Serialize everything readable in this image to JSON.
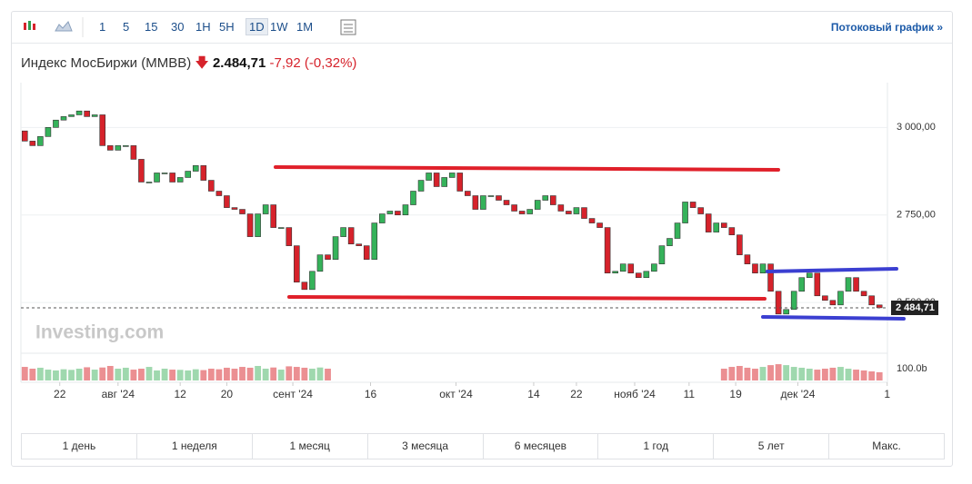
{
  "toolbar": {
    "intervals": [
      "1",
      "5",
      "15",
      "30",
      "1H",
      "5H",
      "1D",
      "1W",
      "1M"
    ],
    "stream_link": "Потоковый график »"
  },
  "header": {
    "name": "Индекс МосБиржи (MMBB)",
    "price": "2.484,71",
    "change": "-7,92",
    "change_pct": "(-0,32%)"
  },
  "chart_data": {
    "type": "candlestick",
    "watermark": "Investing.com",
    "xlim": [
      0,
      112
    ],
    "xticks": [
      {
        "value": 5,
        "label": "22"
      },
      {
        "value": 12.5,
        "label": "авг '24"
      },
      {
        "value": 20.5,
        "label": "12"
      },
      {
        "value": 26.5,
        "label": "20"
      },
      {
        "value": 35,
        "label": "сент '24"
      },
      {
        "value": 45,
        "label": "16"
      },
      {
        "value": 56,
        "label": "окт '24"
      },
      {
        "value": 66,
        "label": "14"
      },
      {
        "value": 71.5,
        "label": "22"
      },
      {
        "value": 79,
        "label": "нояб '24"
      },
      {
        "value": 86,
        "label": "11"
      },
      {
        "value": 92,
        "label": "19"
      },
      {
        "value": 100,
        "label": "дек '24"
      },
      {
        "value": 111.5,
        "label": "1"
      }
    ],
    "ylim": [
      2355,
      3115
    ],
    "yticks": [
      {
        "value": 3000,
        "label": "3 000,00"
      },
      {
        "value": 2750,
        "label": "2 750,00"
      },
      {
        "value": 2500,
        "label": "2 500,00"
      }
    ],
    "last_price": {
      "value": 2484.71,
      "label": "2 484,71"
    },
    "open": [
      2990,
      2961,
      2948,
      2974,
      3000,
      3021,
      3031,
      3036,
      3047,
      3031,
      3036,
      2948,
      2935,
      2948,
      2948,
      2909,
      2844,
      2844,
      2870,
      2870,
      2844,
      2857,
      2875,
      2891,
      2849,
      2818,
      2805,
      2771,
      2766,
      2753,
      2688,
      2753,
      2779,
      2714,
      2714,
      2662,
      2558,
      2537,
      2589,
      2636,
      2623,
      2688,
      2714,
      2667,
      2662,
      2623,
      2727,
      2753,
      2761,
      2750,
      2779,
      2818,
      2849,
      2870,
      2831,
      2857,
      2870,
      2818,
      2805,
      2766,
      2805,
      2805,
      2792,
      2779,
      2761,
      2753,
      2766,
      2792,
      2805,
      2779,
      2761,
      2753,
      2771,
      2740,
      2727,
      2714,
      2584,
      2589,
      2610,
      2584,
      2571,
      2589,
      2610,
      2662,
      2683,
      2727,
      2787,
      2771,
      2753,
      2701,
      2727,
      2714,
      2693,
      2636,
      2610,
      2584,
      2610,
      2532,
      2467,
      2480,
      2532,
      2571,
      2584,
      2519,
      2506,
      2493,
      2532,
      2571,
      2532,
      2519,
      2493
    ],
    "close": [
      2961,
      2948,
      2974,
      3000,
      3021,
      3031,
      3036,
      3047,
      3031,
      3036,
      2948,
      2935,
      2948,
      2948,
      2909,
      2844,
      2844,
      2870,
      2870,
      2844,
      2857,
      2875,
      2891,
      2849,
      2818,
      2805,
      2771,
      2766,
      2753,
      2688,
      2753,
      2779,
      2714,
      2714,
      2662,
      2558,
      2537,
      2589,
      2636,
      2623,
      2688,
      2714,
      2667,
      2662,
      2623,
      2727,
      2753,
      2761,
      2750,
      2779,
      2818,
      2849,
      2870,
      2831,
      2857,
      2870,
      2818,
      2805,
      2766,
      2805,
      2805,
      2792,
      2779,
      2761,
      2753,
      2766,
      2792,
      2805,
      2779,
      2761,
      2753,
      2771,
      2740,
      2727,
      2714,
      2584,
      2589,
      2610,
      2584,
      2571,
      2589,
      2610,
      2662,
      2683,
      2727,
      2787,
      2771,
      2753,
      2701,
      2727,
      2714,
      2693,
      2636,
      2610,
      2584,
      2610,
      2532,
      2467,
      2480,
      2532,
      2571,
      2584,
      2519,
      2506,
      2493,
      2532,
      2571,
      2532,
      2519,
      2493,
      2485
    ],
    "volume_label": "100.0b",
    "volume_tick": 100,
    "volume": [
      115,
      100,
      108,
      92,
      85,
      95,
      90,
      100,
      112,
      92,
      110,
      123,
      100,
      108,
      92,
      100,
      115,
      85,
      100,
      92,
      90,
      85,
      95,
      88,
      100,
      95,
      108,
      100,
      115,
      108,
      123,
      100,
      110,
      92,
      120,
      115,
      108,
      100,
      110,
      100,
      null,
      null,
      null,
      null,
      null,
      null,
      null,
      null,
      null,
      null,
      null,
      null,
      null,
      null,
      null,
      null,
      null,
      null,
      null,
      null,
      null,
      null,
      null,
      null,
      null,
      null,
      null,
      null,
      null,
      null,
      null,
      null,
      null,
      null,
      null,
      null,
      null,
      null,
      null,
      null,
      null,
      null,
      null,
      null,
      null,
      null,
      null,
      null,
      null,
      null,
      100,
      115,
      123,
      108,
      100,
      115,
      130,
      138,
      130,
      115,
      108,
      100,
      92,
      100,
      108,
      115,
      100,
      92,
      85,
      77,
      70
    ]
  },
  "ranges": [
    "1 день",
    "1 неделя",
    "1 месяц",
    "3 месяца",
    "6 месяцев",
    "1 год",
    "5 лет",
    "Макс."
  ]
}
